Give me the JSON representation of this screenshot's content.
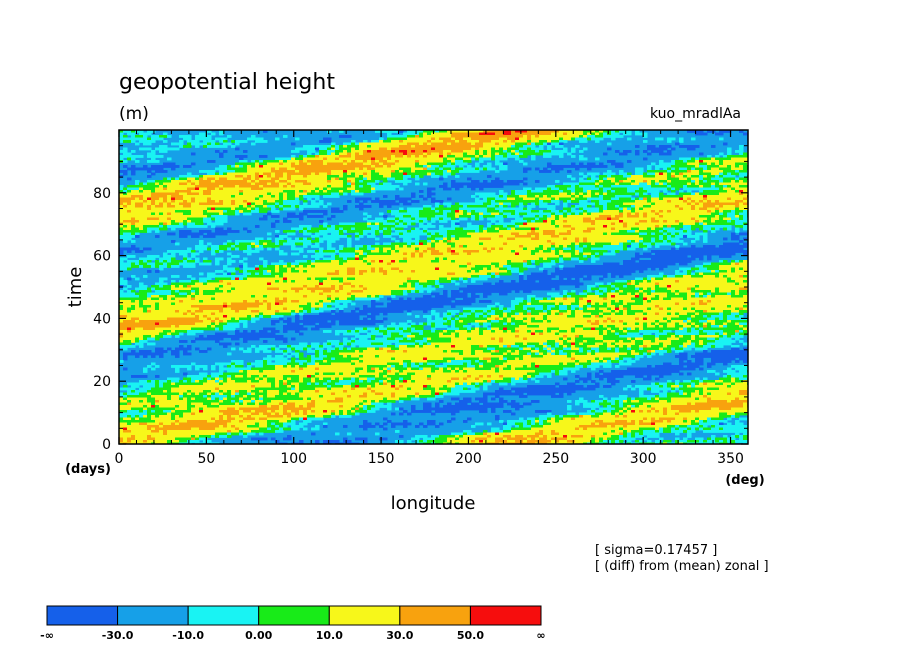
{
  "chart_data": {
    "type": "heatmap",
    "title": "geopotential height",
    "units": "(m)",
    "experiment": "kuo_mradlAa",
    "xlabel": "longitude",
    "x_unit": "(deg)",
    "ylabel": "time",
    "y_unit": "(days)",
    "xlim": [
      0,
      360
    ],
    "ylim": [
      0,
      100
    ],
    "x_ticks": [
      "0",
      "50",
      "100",
      "150",
      "200",
      "250",
      "300",
      "350"
    ],
    "y_ticks": [
      "0",
      "20",
      "40",
      "60",
      "80"
    ],
    "notes": [
      "[ sigma=0.17457 ]",
      "[ (diff) from (mean) zonal ]"
    ],
    "colorbar": {
      "labels": [
        "-∞",
        "-30.0",
        "-10.0",
        "0.00",
        "10.0",
        "30.0",
        "50.0",
        "∞"
      ],
      "colors": [
        "#1560ea",
        "#16a0e8",
        "#19f3f3",
        "#18eb18",
        "#f7f71a",
        "#f8a20e",
        "#f60d0d"
      ]
    },
    "colors": {
      "bg_dark_blue": "#1560ea",
      "blue": "#16a0e8",
      "cyan": "#19f3f3",
      "green": "#18eb18",
      "yellow": "#f7f71a",
      "orange": "#f8a20e",
      "red": "#f60d0d"
    }
  }
}
